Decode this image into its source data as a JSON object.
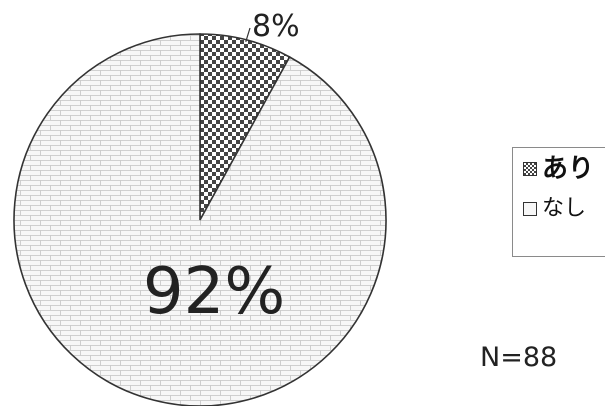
{
  "chart_data": {
    "type": "pie",
    "title": "",
    "categories": [
      "あり",
      "なし"
    ],
    "values": [
      8,
      92
    ],
    "data_labels": [
      "8%",
      "92%"
    ],
    "legend": {
      "position": "right",
      "entries": [
        "あり",
        "なし"
      ]
    },
    "start_angle": "12 o'clock",
    "direction": "clockwise",
    "slice_patterns": [
      "checkerboard",
      "brick"
    ],
    "colors": {
      "slice_fill": "#f7f7f7",
      "pattern_dark": "#444444",
      "outline": "#333333"
    }
  },
  "annotation": {
    "sample_size": "N=88"
  }
}
